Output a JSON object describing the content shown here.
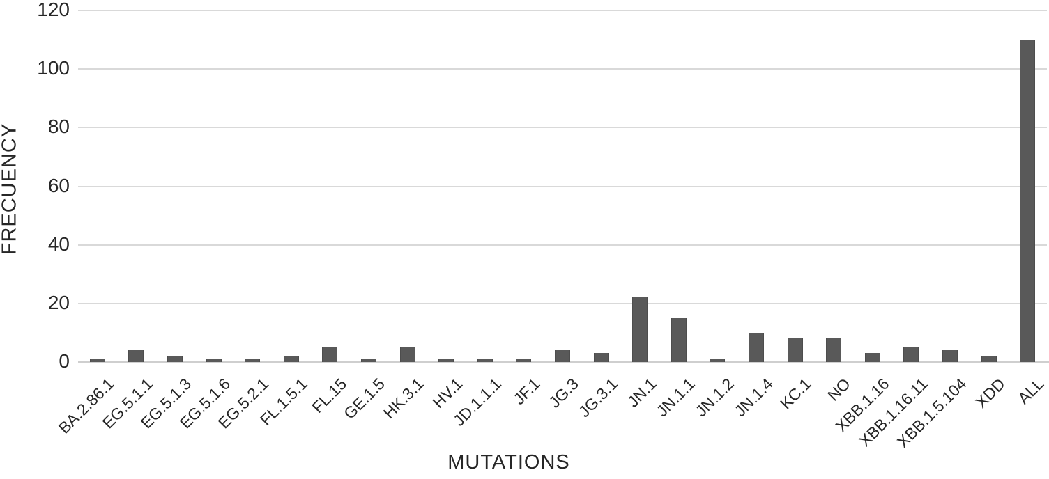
{
  "chart_data": {
    "type": "bar",
    "title": "",
    "xlabel": "MUTATIONS",
    "ylabel": "FRECUENCY",
    "categories": [
      "BA.2.86.1",
      "EG.5.1.1",
      "EG.5.1.3",
      "EG.5.1.6",
      "EG.5.2.1",
      "FL.1.5.1",
      "FL.15",
      "GE.1.5",
      "HK.3.1",
      "HV.1",
      "JD.1.1.1",
      "JF.1",
      "JG.3",
      "JG.3.1",
      "JN.1",
      "JN.1.1",
      "JN.1.2",
      "JN.1.4",
      "KC.1",
      "NO",
      "XBB.1.16",
      "XBB.1.16.11",
      "XBB.1.5.104",
      "XDD",
      "ALL"
    ],
    "values": [
      1,
      4,
      2,
      1,
      1,
      2,
      5,
      1,
      5,
      1,
      1,
      1,
      4,
      3,
      22,
      15,
      1,
      10,
      8,
      8,
      3,
      5,
      4,
      2,
      110
    ],
    "ylim": [
      0,
      120
    ],
    "yticks": [
      0,
      20,
      40,
      60,
      80,
      100,
      120
    ],
    "grid": "horizontal",
    "legend": "none",
    "colors": {
      "bar": "#595959",
      "gridline": "#d9d9d9",
      "axis_line": "#cfcfcf",
      "text": "#262626",
      "background": "#ffffff"
    }
  }
}
